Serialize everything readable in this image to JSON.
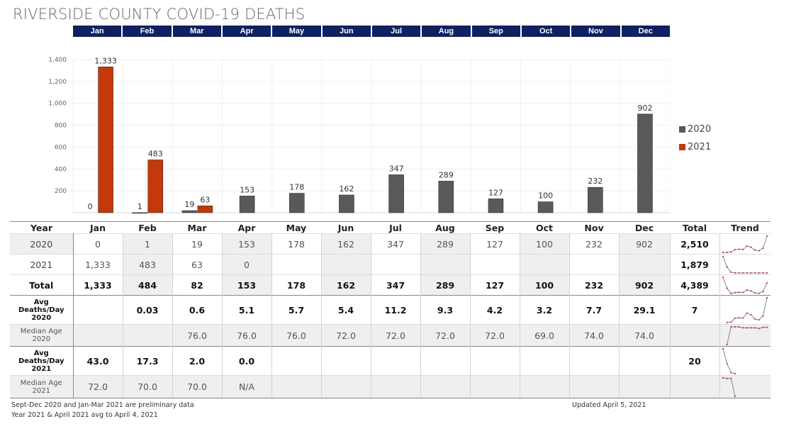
{
  "title": "RIVERSIDE COUNTY COVID-19 DEATHS",
  "colors": {
    "header_bg": "#0e2161",
    "series_2020": "#595959",
    "series_2021": "#c4380b",
    "sparkline": "#c0504d"
  },
  "chart_data": {
    "type": "bar",
    "title": "RIVERSIDE COUNTY COVID-19 DEATHS",
    "categories": [
      "Jan",
      "Feb",
      "Mar",
      "Apr",
      "May",
      "Jun",
      "Jul",
      "Aug",
      "Sep",
      "Oct",
      "Nov",
      "Dec"
    ],
    "series": [
      {
        "name": "2020",
        "values": [
          0,
          1,
          19,
          153,
          178,
          162,
          347,
          289,
          127,
          100,
          232,
          902
        ],
        "labels": [
          "0",
          "1",
          "19",
          "153",
          "178",
          "162",
          "347",
          "289",
          "127",
          "100",
          "232",
          "902"
        ]
      },
      {
        "name": "2021",
        "values": [
          1333,
          483,
          63,
          null,
          null,
          null,
          null,
          null,
          null,
          null,
          null,
          null
        ],
        "labels": [
          "1,333",
          "483",
          "63",
          "",
          "",
          "",
          "",
          "",
          "",
          "",
          "",
          ""
        ]
      }
    ],
    "ylim": [
      0,
      1400
    ],
    "yticks": [
      200,
      400,
      600,
      800,
      1000,
      1200,
      1400
    ],
    "ytick_labels": [
      "200",
      "400",
      "600",
      "800",
      "1,000",
      "1,200",
      "1,400"
    ],
    "xlabel": "",
    "ylabel": "",
    "grid": true,
    "legend": "right"
  },
  "table": {
    "headers": [
      "Year",
      "Jan",
      "Feb",
      "Mar",
      "Apr",
      "May",
      "Jun",
      "Jul",
      "Aug",
      "Sep",
      "Oct",
      "Nov",
      "Dec",
      "Total",
      "Trend"
    ],
    "rows": [
      {
        "label": "2020",
        "cells": [
          "0",
          "1",
          "19",
          "153",
          "178",
          "162",
          "347",
          "289",
          "127",
          "100",
          "232",
          "902"
        ],
        "total": "2,510",
        "trend": [
          0,
          1,
          19,
          153,
          178,
          162,
          347,
          289,
          127,
          100,
          232,
          902
        ]
      },
      {
        "label": "2021",
        "cells": [
          "1,333",
          "483",
          "63",
          "0",
          "",
          "",
          "",
          "",
          "",
          "",
          "",
          ""
        ],
        "total": "1,879",
        "trend": [
          1333,
          483,
          63,
          0,
          0,
          0,
          0,
          0,
          0,
          0,
          0,
          0
        ]
      },
      {
        "label": "Total",
        "cells": [
          "1,333",
          "484",
          "82",
          "153",
          "178",
          "162",
          "347",
          "289",
          "127",
          "100",
          "232",
          "902"
        ],
        "total": "4,389",
        "trend": [
          1333,
          484,
          82,
          153,
          178,
          162,
          347,
          289,
          127,
          100,
          232,
          902
        ]
      },
      {
        "label": "Avg Deaths/Day 2020",
        "label_lines": [
          "Avg",
          "Deaths/Day",
          "2020"
        ],
        "cells": [
          "",
          "0.03",
          "0.6",
          "5.1",
          "5.7",
          "5.4",
          "11.2",
          "9.3",
          "4.2",
          "3.2",
          "7.7",
          "29.1"
        ],
        "total": "7",
        "trend": [
          null,
          0.03,
          0.6,
          5.1,
          5.7,
          5.4,
          11.2,
          9.3,
          4.2,
          3.2,
          7.7,
          29.1
        ]
      },
      {
        "label": "Median Age 2020",
        "label_lines": [
          "Median Age",
          "2020"
        ],
        "cells": [
          "",
          "",
          "76.0",
          "76.0",
          "76.0",
          "72.0",
          "72.0",
          "72.0",
          "72.0",
          "69.0",
          "74.0",
          "74.0"
        ],
        "total": "",
        "trend": [
          null,
          0,
          76,
          76,
          76,
          72,
          72,
          72,
          72,
          69,
          74,
          74
        ]
      },
      {
        "label": "Avg Deaths/Day 2021",
        "label_lines": [
          "Avg",
          "Deaths/Day",
          "2021"
        ],
        "cells": [
          "43.0",
          "17.3",
          "2.0",
          "0.0",
          "",
          "",
          "",
          "",
          "",
          "",
          "",
          ""
        ],
        "total": "20",
        "trend": [
          43,
          17.3,
          2,
          0
        ]
      },
      {
        "label": "Median Age 2021",
        "label_lines": [
          "Median Age",
          "2021"
        ],
        "cells": [
          "72.0",
          "70.0",
          "70.0",
          "N/A",
          "",
          "",
          "",
          "",
          "",
          "",
          "",
          ""
        ],
        "total": "",
        "trend": [
          72,
          70,
          70,
          0
        ]
      }
    ]
  },
  "footer": {
    "note1": "Sept-Dec 2020 and Jan-Mar 2021 are preliminary data",
    "note2": "Year 2021 & April 2021 avg to April 4, 2021",
    "updated": "Updated April 5, 2021"
  }
}
